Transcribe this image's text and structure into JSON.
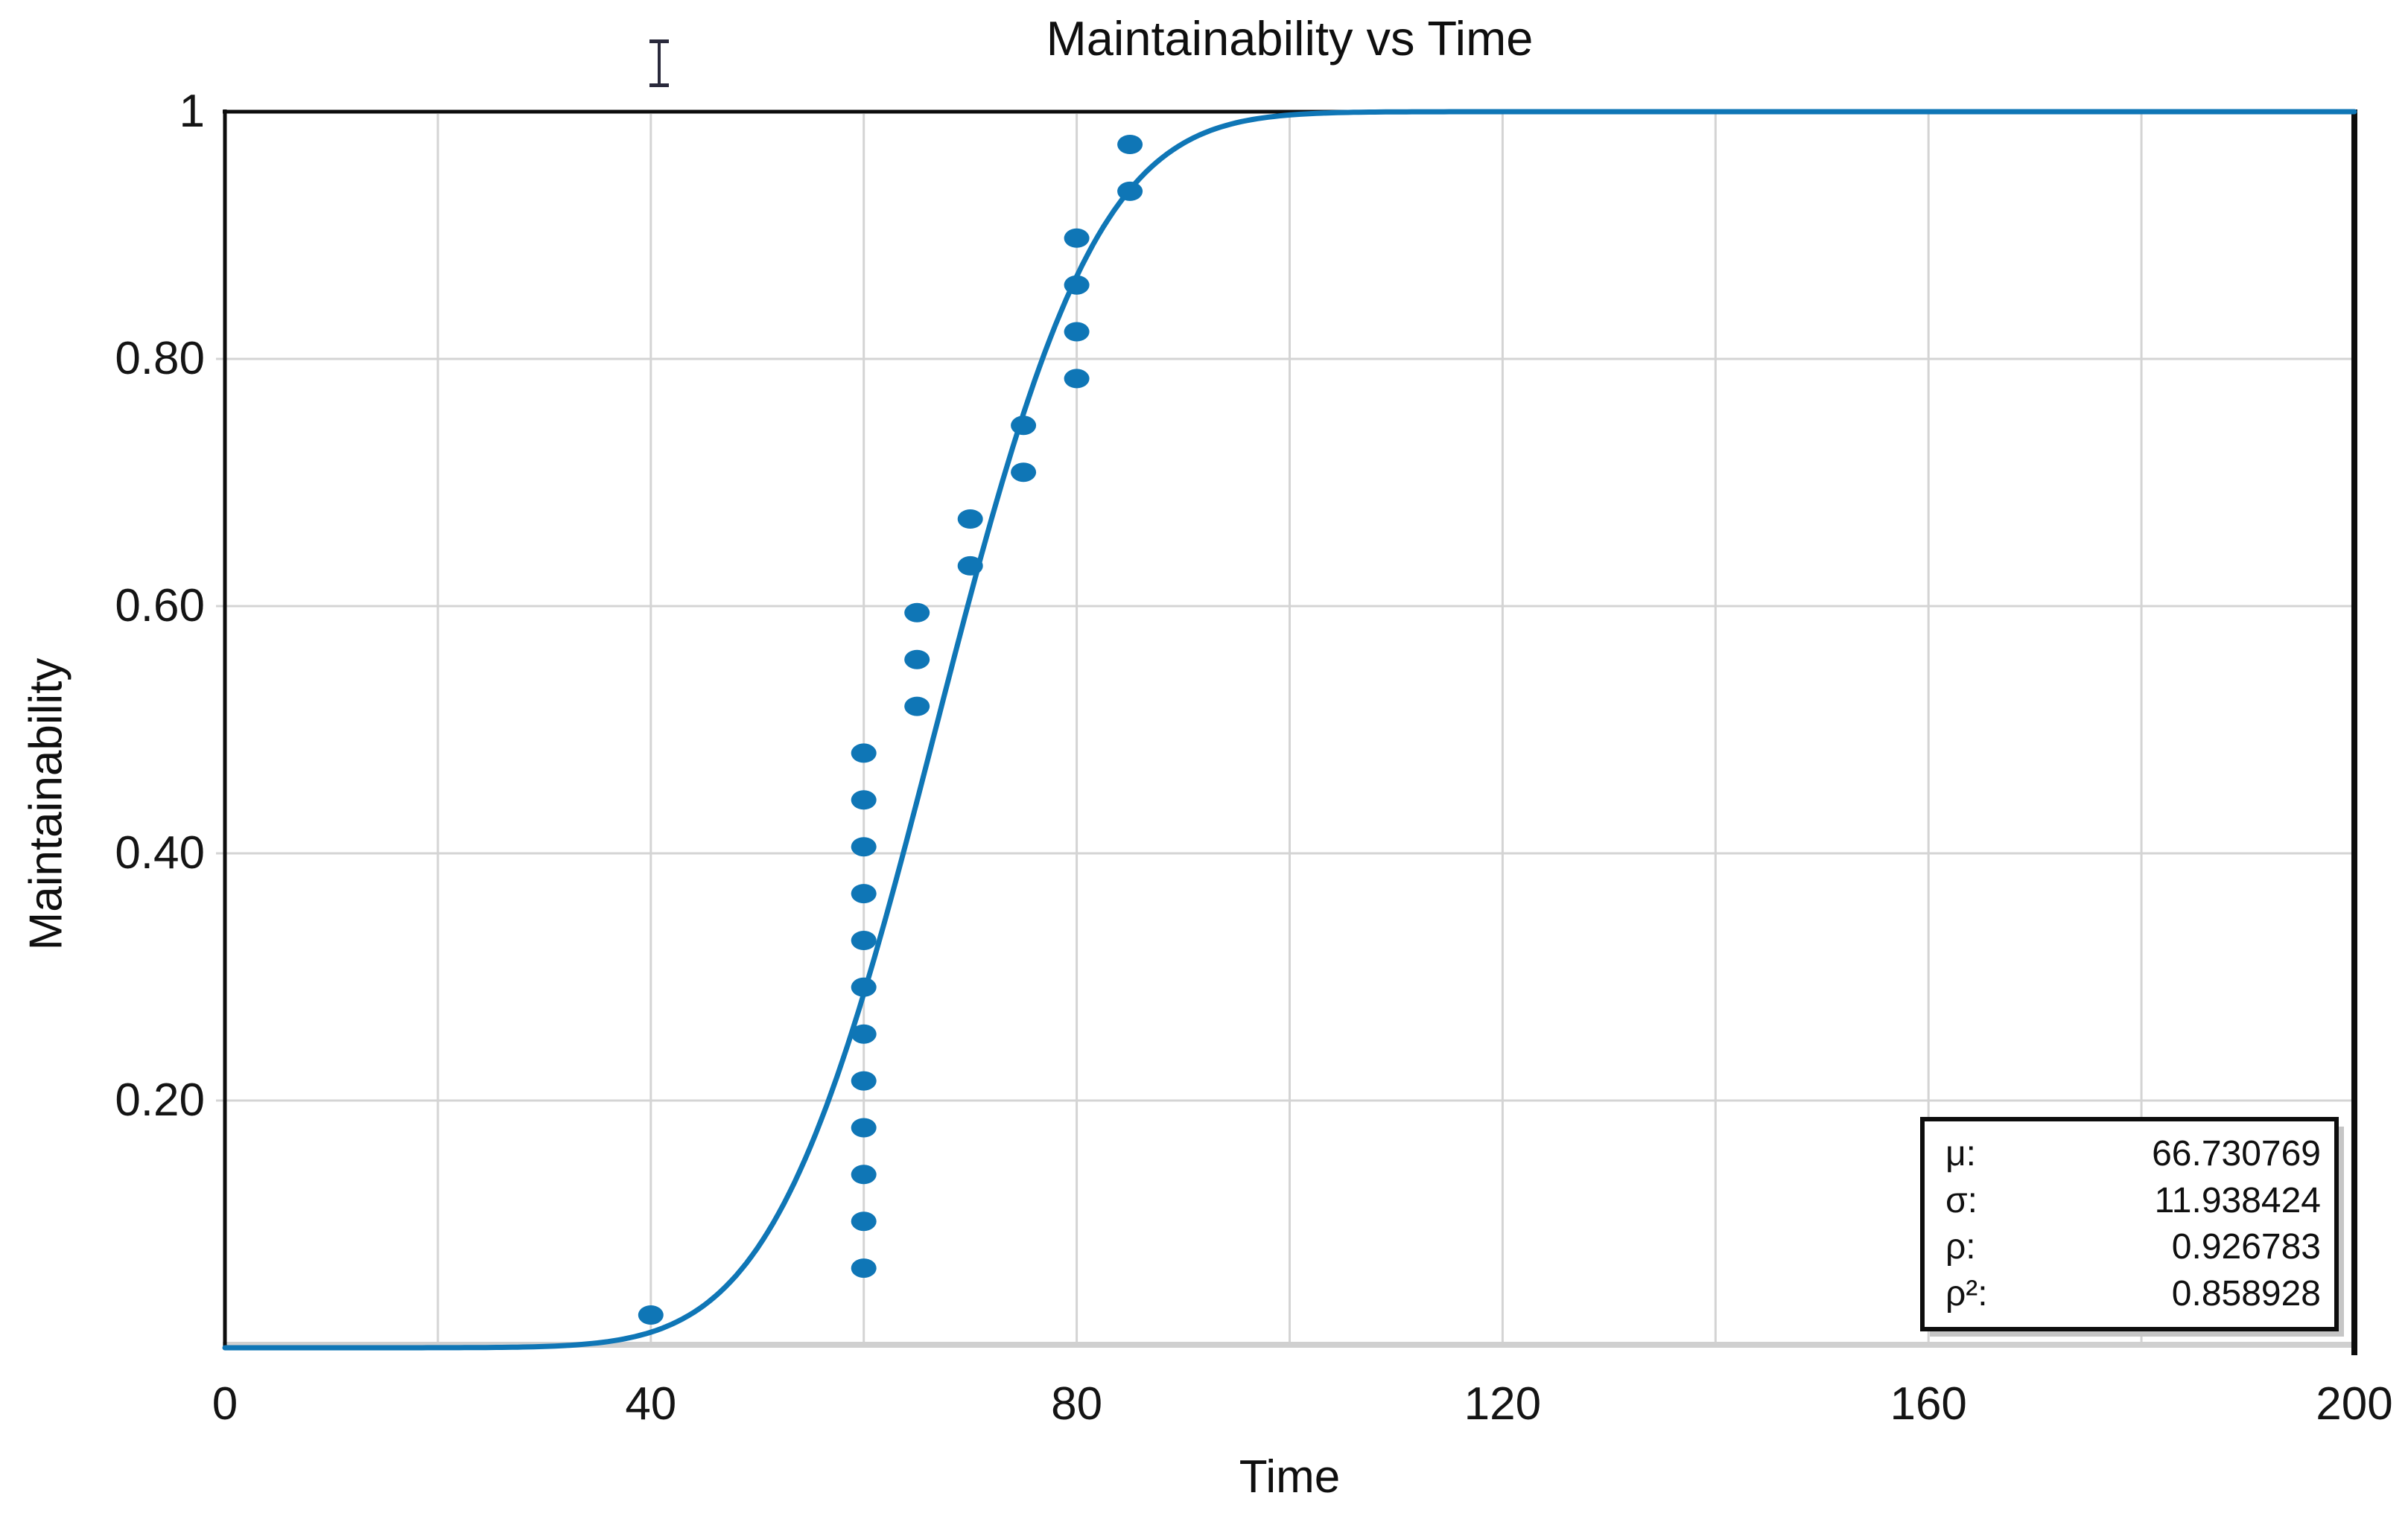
{
  "chart_data": {
    "type": "scatter",
    "title": "Maintainability vs Time",
    "xlabel": "Time",
    "ylabel": "Maintainability",
    "xlim": [
      0,
      200
    ],
    "ylim": [
      0,
      1
    ],
    "x_ticks": [
      0,
      40,
      80,
      120,
      160,
      200
    ],
    "x_tick_labels": [
      "0",
      "40",
      "80",
      "120",
      "160",
      "200"
    ],
    "y_ticks": [
      0.2,
      0.4,
      0.6,
      0.8,
      1
    ],
    "y_tick_labels": [
      "0.20",
      "0.40",
      "0.60",
      "0.80",
      "1"
    ],
    "x_grid_step": 20,
    "y_grid_step": 0.2,
    "grid": true,
    "legend": null,
    "points": [
      {
        "t": 40,
        "m": 0.0265
      },
      {
        "t": 60,
        "m": 0.0644
      },
      {
        "t": 60,
        "m": 0.1023
      },
      {
        "t": 60,
        "m": 0.1402
      },
      {
        "t": 60,
        "m": 0.178
      },
      {
        "t": 60,
        "m": 0.2159
      },
      {
        "t": 60,
        "m": 0.2538
      },
      {
        "t": 60,
        "m": 0.2917
      },
      {
        "t": 60,
        "m": 0.3295
      },
      {
        "t": 60,
        "m": 0.3674
      },
      {
        "t": 60,
        "m": 0.4053
      },
      {
        "t": 60,
        "m": 0.4432
      },
      {
        "t": 60,
        "m": 0.4811
      },
      {
        "t": 65,
        "m": 0.5189
      },
      {
        "t": 65,
        "m": 0.5568
      },
      {
        "t": 65,
        "m": 0.5947
      },
      {
        "t": 70,
        "m": 0.6326
      },
      {
        "t": 70,
        "m": 0.6705
      },
      {
        "t": 75,
        "m": 0.7083
      },
      {
        "t": 75,
        "m": 0.7462
      },
      {
        "t": 80,
        "m": 0.7841
      },
      {
        "t": 80,
        "m": 0.822
      },
      {
        "t": 80,
        "m": 0.8598
      },
      {
        "t": 80,
        "m": 0.8977
      },
      {
        "t": 85,
        "m": 0.9356
      },
      {
        "t": 85,
        "m": 0.9735
      }
    ],
    "fit_curve": {
      "distribution": "normal-cdf",
      "mu": 66.730769,
      "sigma": 11.938424
    },
    "colors": {
      "series": "#0f76b6",
      "grid": "#d4d4d4",
      "bottom_axis": "#d0d0d0",
      "axis": "#0d0d0d",
      "text": "#111111"
    }
  },
  "stats_box": {
    "rows": [
      {
        "label": "μ:",
        "value": "66.730769"
      },
      {
        "label": "σ:",
        "value": "11.938424"
      },
      {
        "label": "ρ:",
        "value": "0.926783"
      },
      {
        "label": "ρ²:",
        "value": "0.858928"
      }
    ]
  }
}
